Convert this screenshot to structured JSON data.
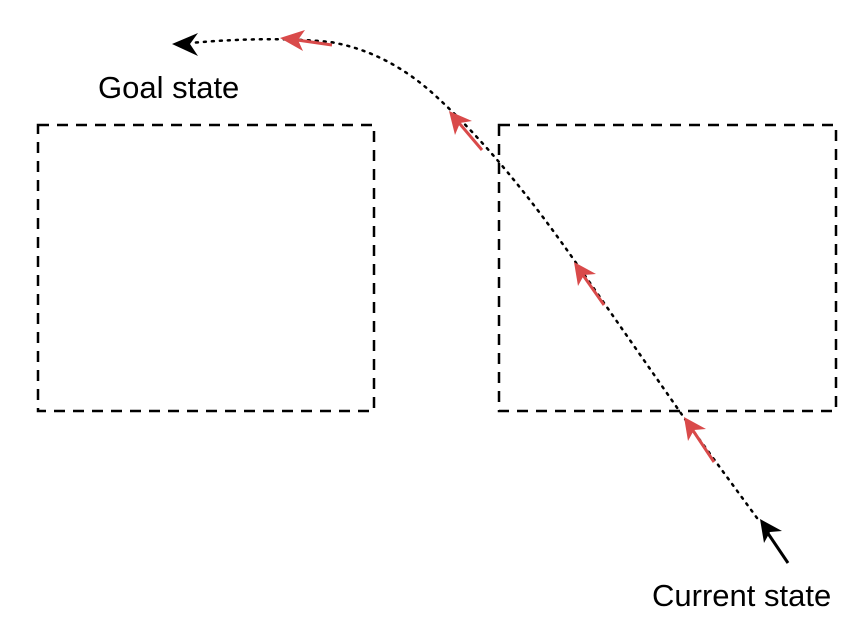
{
  "labels": {
    "goal": "Goal state",
    "current": "Current state"
  },
  "colors": {
    "path": "#000000",
    "step_arrows": "#d94a4a",
    "boxes": "#000000"
  },
  "icons": {
    "goal_arrowhead": "arrowhead-icon",
    "current_arrowhead": "arrowhead-icon",
    "step_arrow": "arrow-icon"
  }
}
